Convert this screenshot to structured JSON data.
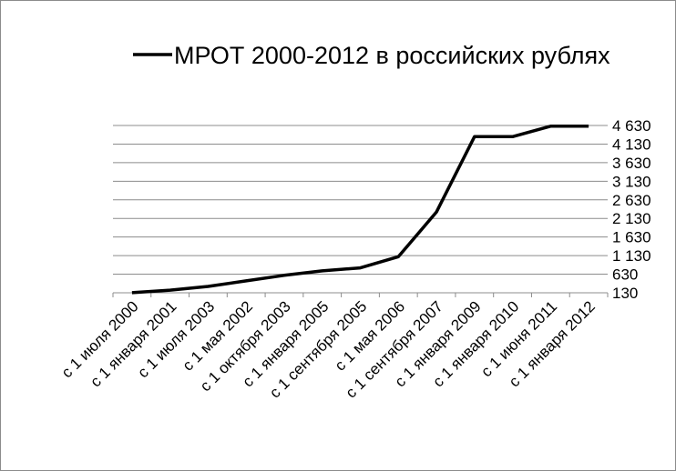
{
  "chart_data": {
    "type": "line",
    "title": "МРОТ 2000-2012 в российских рублях",
    "legend": {
      "placement": "top-right",
      "entry": "МРОТ 2000-2012 в российских рублях"
    },
    "xlabel": "",
    "ylabel": "",
    "ylim": [
      130,
      4630
    ],
    "yticks": [
      "4 630",
      "4 130",
      "3 630",
      "3 130",
      "2 630",
      "2 130",
      "1 630",
      "1 130",
      "630",
      "130"
    ],
    "ytick_values": [
      4630,
      4130,
      3630,
      3130,
      2630,
      2130,
      1630,
      1130,
      630,
      130
    ],
    "grid": {
      "horizontal": true,
      "vertical": false
    },
    "categories": [
      "с 1 июля 2000",
      "с 1 января 2001",
      "с 1 июля 2003",
      "с 1 мая 2002",
      "с 1 октября 2003",
      "с 1 января 2005",
      "с 1 сентября 2005",
      "с 1 мая 2006",
      "с 1 сентября 2007",
      "с 1 января 2009",
      "с 1 января 2010",
      "с 1 июня 2011",
      "с 1 января 2012"
    ],
    "series": [
      {
        "name": "МРОТ 2000-2012 в российских рублях",
        "color": "#000000",
        "values": [
          132,
          200,
          300,
          450,
          600,
          720,
          800,
          1100,
          2300,
          4330,
          4330,
          4611,
          4611
        ]
      }
    ]
  }
}
